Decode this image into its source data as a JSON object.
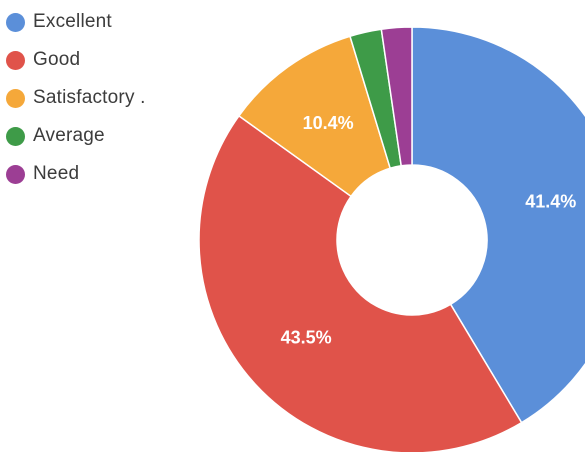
{
  "chart_data": {
    "type": "pie",
    "donut": true,
    "title": "",
    "legend_position": "top-left",
    "categories": [
      "Excellent",
      "Good",
      "Satisfactory .",
      "Average",
      "Need"
    ],
    "values": [
      41.4,
      43.5,
      10.4,
      2.4,
      2.3
    ],
    "data_labels": [
      "41.4%",
      "43.5%",
      "10.4%",
      "",
      ""
    ],
    "colors": [
      "#5b8fd9",
      "#e0534a",
      "#f5a83a",
      "#3e9b48",
      "#9c3e94"
    ]
  }
}
